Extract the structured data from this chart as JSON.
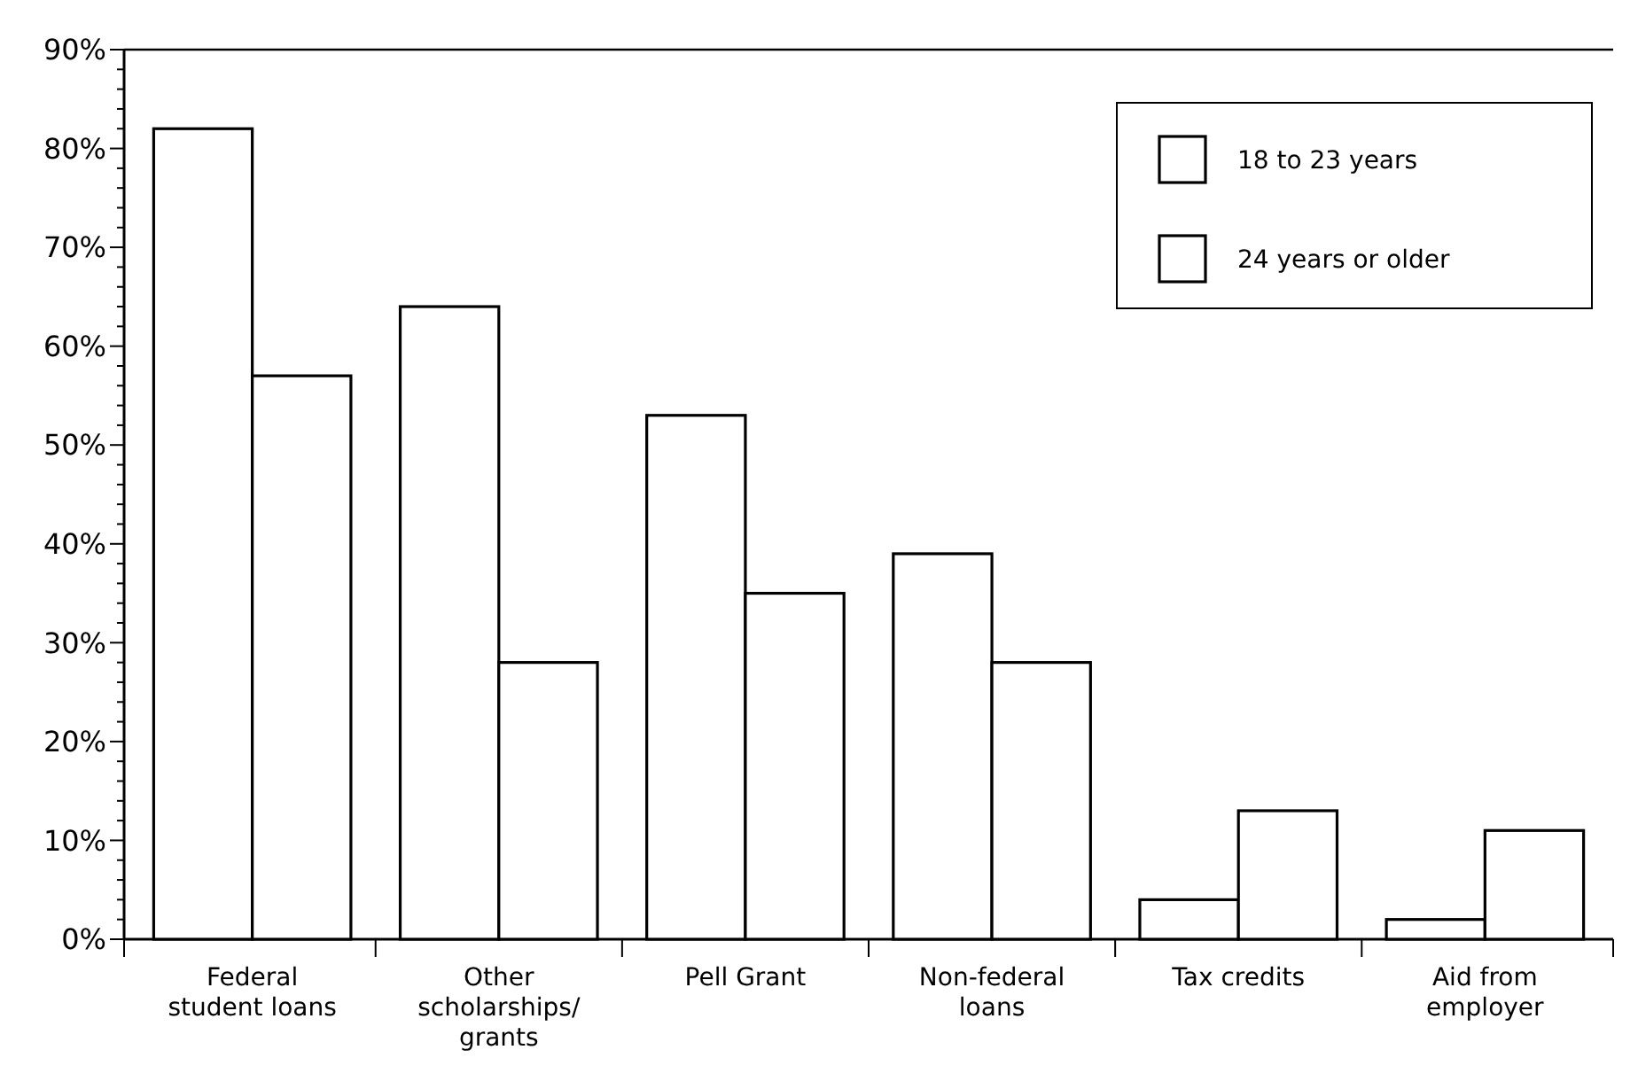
{
  "chart_data": {
    "type": "bar",
    "categories": [
      "Federal student loans",
      "Other scholarships/ grants",
      "Pell Grant",
      "Non-federal loans",
      "Tax credits",
      "Aid from employer"
    ],
    "series": [
      {
        "name": "18 to 23 years",
        "color": "#ffffff",
        "values": [
          82,
          64,
          53,
          39,
          4,
          2
        ]
      },
      {
        "name": "24 years or older",
        "color": "#ffffff",
        "values": [
          57,
          28,
          35,
          28,
          13,
          11
        ]
      }
    ],
    "ylim": [
      0,
      90
    ],
    "yticks": [
      {
        "value": 0,
        "label": "0%"
      },
      {
        "value": 10,
        "label": "10%"
      },
      {
        "value": 20,
        "label": "20%"
      },
      {
        "value": 30,
        "label": "30%"
      },
      {
        "value": 40,
        "label": "40%"
      },
      {
        "value": 50,
        "label": "50%"
      },
      {
        "value": 60,
        "label": "60%"
      },
      {
        "value": 70,
        "label": "70%"
      },
      {
        "value": 80,
        "label": "80%"
      },
      {
        "value": 90,
        "label": "90%"
      }
    ],
    "legend": "top right",
    "grid": false
  }
}
